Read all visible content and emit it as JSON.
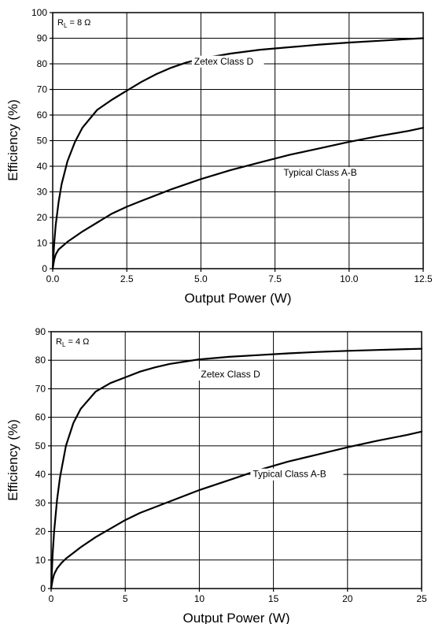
{
  "chart_data": [
    {
      "type": "line",
      "annotation": {
        "main": "R",
        "sub": "L",
        "rest": " = 8 Ω"
      },
      "xlabel": "Output Power (W)",
      "ylabel": "Efficiency (%)",
      "xlim": [
        0,
        12.5
      ],
      "ylim": [
        0,
        100
      ],
      "xticks": [
        0,
        2.5,
        5,
        7.5,
        10,
        12.5
      ],
      "xtick_labels": [
        "0.0",
        "2.5",
        "5.0",
        "7.5",
        "10.0",
        "12.5"
      ],
      "yticks": [
        0,
        10,
        20,
        30,
        40,
        50,
        60,
        70,
        80,
        90,
        100
      ],
      "ytick_labels": [
        "0",
        "10",
        "20",
        "30",
        "40",
        "50",
        "60",
        "70",
        "80",
        "90",
        "100"
      ],
      "grid": true,
      "series": [
        {
          "name": "Zetex Class D",
          "x": [
            0,
            0.05,
            0.1,
            0.2,
            0.3,
            0.5,
            0.75,
            1.0,
            1.5,
            2.0,
            2.5,
            3.0,
            3.5,
            4.0,
            4.5,
            5.0,
            6.0,
            7.0,
            8.0,
            9.0,
            10.0,
            11.0,
            12.0,
            12.5
          ],
          "y": [
            0,
            10,
            17,
            26,
            33,
            42,
            49.5,
            55,
            62,
            66,
            69.5,
            73,
            76,
            78.5,
            80.5,
            82,
            84,
            85.5,
            86.5,
            87.5,
            88.3,
            89,
            89.7,
            90
          ]
        },
        {
          "name": "Typical Class A-B",
          "x": [
            0,
            0.05,
            0.1,
            0.2,
            0.3,
            0.5,
            0.75,
            1.0,
            1.5,
            2.0,
            2.5,
            3.0,
            4.0,
            5.0,
            6.0,
            7.0,
            8.0,
            9.0,
            10.0,
            11.0,
            12.0,
            12.5
          ],
          "y": [
            0,
            3.5,
            5.5,
            7.5,
            8.5,
            10.5,
            12.5,
            14.5,
            18,
            21.5,
            24.2,
            26.5,
            31,
            35,
            38.5,
            41.5,
            44.5,
            47,
            49.5,
            51.8,
            53.8,
            55
          ]
        }
      ]
    },
    {
      "type": "line",
      "annotation": {
        "main": "R",
        "sub": "L",
        "rest": " = 4 Ω"
      },
      "xlabel": "Output Power (W)",
      "ylabel": "Efficiency (%)",
      "xlim": [
        0,
        25
      ],
      "ylim": [
        0,
        90
      ],
      "xticks": [
        0,
        5,
        10,
        15,
        20,
        25
      ],
      "xtick_labels": [
        "0",
        "5",
        "10",
        "15",
        "20",
        "25"
      ],
      "yticks": [
        0,
        10,
        20,
        30,
        40,
        50,
        60,
        70,
        80,
        90
      ],
      "ytick_labels": [
        "0",
        "10",
        "20",
        "30",
        "40",
        "50",
        "60",
        "70",
        "80",
        "90"
      ],
      "grid": true,
      "series": [
        {
          "name": "Zetex Class D",
          "x": [
            0,
            0.1,
            0.2,
            0.4,
            0.6,
            1.0,
            1.5,
            2.0,
            3.0,
            4.0,
            5.0,
            6.0,
            7.0,
            8.0,
            9.0,
            10.0,
            12.0,
            14.0,
            16.0,
            18.0,
            20.0,
            22.0,
            24.0,
            25.0
          ],
          "y": [
            0,
            12,
            20,
            31,
            39,
            50,
            58,
            63,
            69,
            72,
            74,
            76,
            77.5,
            78.7,
            79.5,
            80.3,
            81.2,
            81.8,
            82.4,
            82.9,
            83.3,
            83.6,
            83.9,
            84
          ]
        },
        {
          "name": "Typical Class A-B",
          "x": [
            0,
            0.1,
            0.2,
            0.4,
            0.7,
            1.0,
            1.5,
            2.0,
            3.0,
            4.0,
            5.0,
            6.0,
            8.0,
            10.0,
            12.0,
            14.0,
            16.0,
            18.0,
            20.0,
            22.0,
            24.0,
            25.0
          ],
          "y": [
            0,
            3,
            5,
            7,
            9,
            10.5,
            12.5,
            14.5,
            18,
            21,
            24,
            26.5,
            30.5,
            34.5,
            38,
            41.5,
            44.5,
            47,
            49.5,
            51.8,
            53.8,
            55
          ]
        }
      ]
    }
  ]
}
